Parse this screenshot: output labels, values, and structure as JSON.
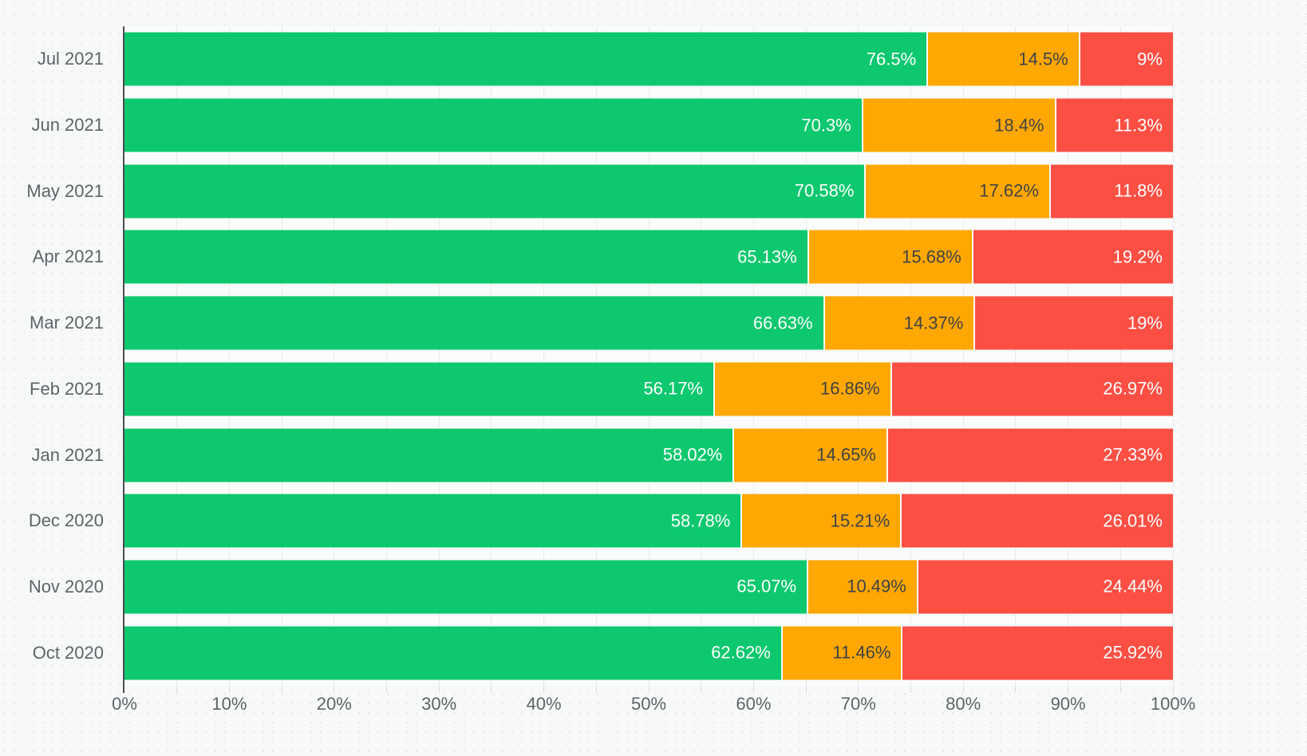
{
  "chart_data": {
    "type": "bar",
    "orientation": "horizontal",
    "stacked": true,
    "title": "",
    "xlabel": "",
    "ylabel": "",
    "unit": "%",
    "xlim": [
      0,
      100
    ],
    "x_tick_labels": [
      "0%",
      "10%",
      "20%",
      "30%",
      "40%",
      "50%",
      "60%",
      "70%",
      "80%",
      "90%",
      "100%"
    ],
    "minor_tick_step_percent": 5,
    "grid": "vertical lines every 5%",
    "legend_position": "none",
    "categories": [
      "Jul 2021",
      "Jun 2021",
      "May 2021",
      "Apr 2021",
      "Mar 2021",
      "Feb 2021",
      "Jan 2021",
      "Dec 2020",
      "Nov 2020",
      "Oct 2020"
    ],
    "series": [
      {
        "name": "green",
        "color": "#0dc86e",
        "label_color": "#ffffff",
        "values": [
          76.5,
          70.3,
          70.58,
          65.13,
          66.63,
          56.17,
          58.02,
          58.78,
          65.07,
          62.62
        ],
        "labels": [
          "76.5%",
          "70.3%",
          "70.58%",
          "65.13%",
          "66.63%",
          "56.17%",
          "58.02%",
          "58.78%",
          "65.07%",
          "62.62%"
        ]
      },
      {
        "name": "amber",
        "color": "#ffa702",
        "label_color": "#3f4347",
        "values": [
          14.5,
          18.4,
          17.62,
          15.68,
          14.37,
          16.86,
          14.65,
          15.21,
          10.49,
          11.46
        ],
        "labels": [
          "14.5%",
          "18.4%",
          "17.62%",
          "15.68%",
          "14.37%",
          "16.86%",
          "14.65%",
          "15.21%",
          "10.49%",
          "11.46%"
        ]
      },
      {
        "name": "red",
        "color": "#fb4f44",
        "label_color": "#ffffff",
        "values": [
          9,
          11.3,
          11.8,
          19.2,
          19,
          26.97,
          27.33,
          26.01,
          24.44,
          25.92
        ],
        "labels": [
          "9%",
          "11.3%",
          "11.8%",
          "19.2%",
          "19%",
          "26.97%",
          "27.33%",
          "26.01%",
          "24.44%",
          "25.92%"
        ]
      }
    ],
    "style_colors": {
      "page_background": "#f7f8f8",
      "plot_background": "#fafbfb",
      "axis_line": "#4b4d52",
      "gridline": "#e9eaeb",
      "tick": "#d8d9da",
      "axis_text": "#5f6468"
    }
  }
}
